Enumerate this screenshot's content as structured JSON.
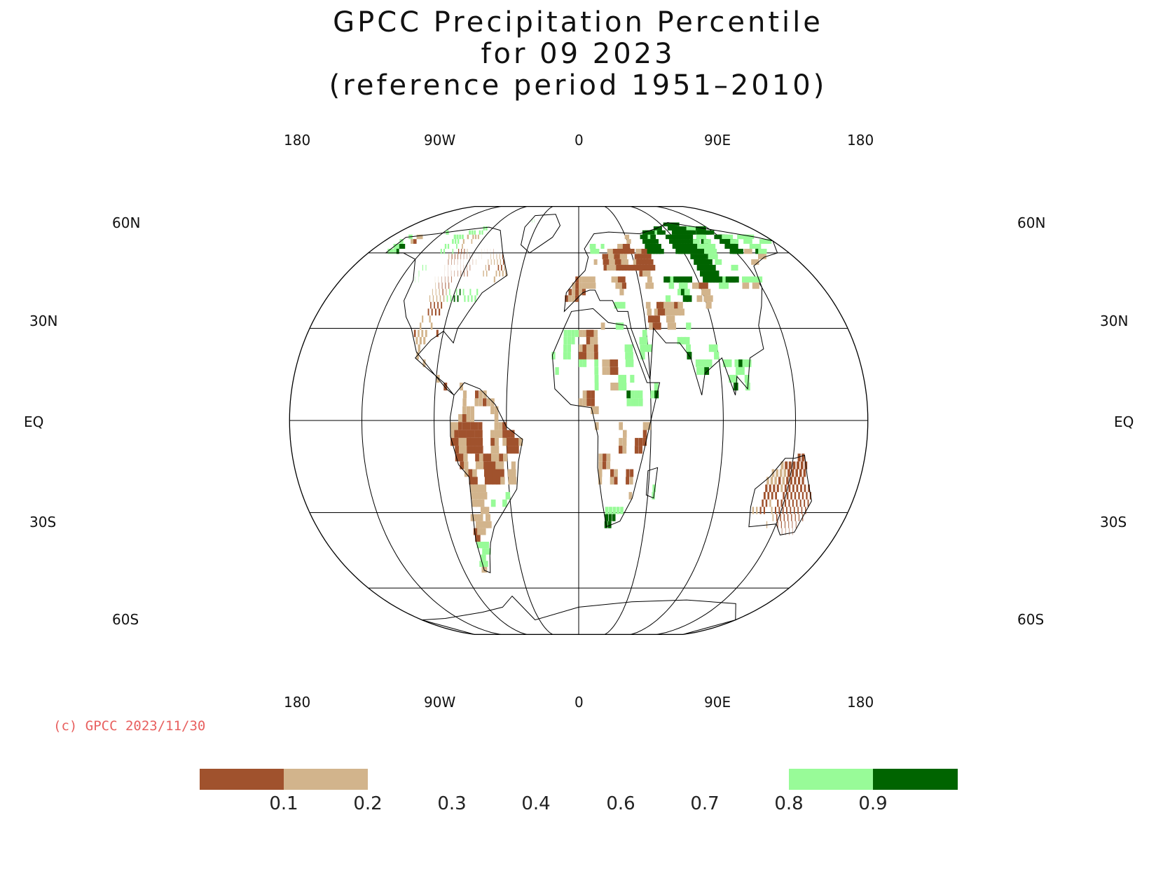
{
  "title": {
    "line1": "GPCC Precipitation Percentile",
    "line2": "for 09 2023",
    "line3": "(reference period 1951–2010)"
  },
  "map": {
    "projection": "Robinson",
    "lon_labels_top": [
      "180",
      "90W",
      "0",
      "90E",
      "180"
    ],
    "lon_labels_bottom": [
      "180",
      "90W",
      "0",
      "90E",
      "180"
    ],
    "lat_labels_left": [
      "60N",
      "30N",
      "EQ",
      "30S",
      "60S"
    ],
    "lat_labels_right": [
      "60N",
      "30N",
      "EQ",
      "30S",
      "60S"
    ]
  },
  "copyright": "(c) GPCC 2023/11/30",
  "legend": {
    "ticks": [
      "0.1",
      "0.2",
      "0.3",
      "0.4",
      "0.6",
      "0.7",
      "0.8",
      "0.9"
    ],
    "colors": {
      "very_dry": "#a0522d",
      "dry": "#d2b48c",
      "wet": "#98fb98",
      "very_wet": "#006400"
    }
  }
}
